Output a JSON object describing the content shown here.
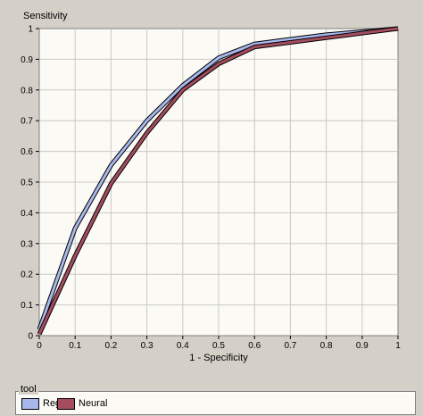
{
  "chart_data": {
    "type": "line",
    "title": "",
    "xlabel": "1 - Specificity",
    "ylabel": "Sensitivity",
    "xlim": [
      0,
      1
    ],
    "ylim": [
      0,
      1
    ],
    "xticks": [
      "0",
      "0.1",
      "0.2",
      "0.3",
      "0.4",
      "0.5",
      "0.6",
      "0.7",
      "0.8",
      "0.9",
      "1"
    ],
    "yticks": [
      "0",
      "0.1",
      "0.2",
      "0.3",
      "0.4",
      "0.5",
      "0.6",
      "0.7",
      "0.8",
      "0.9",
      "1"
    ],
    "grid": true,
    "legend_title": "tool",
    "legend_position": "bottom",
    "series": [
      {
        "name": "Reg",
        "color": "#a9b8ec",
        "x": [
          0,
          0.1,
          0.2,
          0.3,
          0.4,
          0.5,
          0.6,
          0.7,
          0.8,
          0.9,
          1.0
        ],
        "y": [
          0.02,
          0.35,
          0.555,
          0.7,
          0.815,
          0.905,
          0.95,
          0.965,
          0.98,
          0.99,
          1.0
        ]
      },
      {
        "name": "Neural",
        "color": "#a44d5e",
        "x": [
          0,
          0.1,
          0.2,
          0.3,
          0.4,
          0.5,
          0.6,
          0.7,
          0.8,
          0.9,
          1.0
        ],
        "y": [
          0.005,
          0.26,
          0.495,
          0.66,
          0.8,
          0.885,
          0.94,
          0.955,
          0.97,
          0.985,
          1.0
        ]
      }
    ]
  }
}
